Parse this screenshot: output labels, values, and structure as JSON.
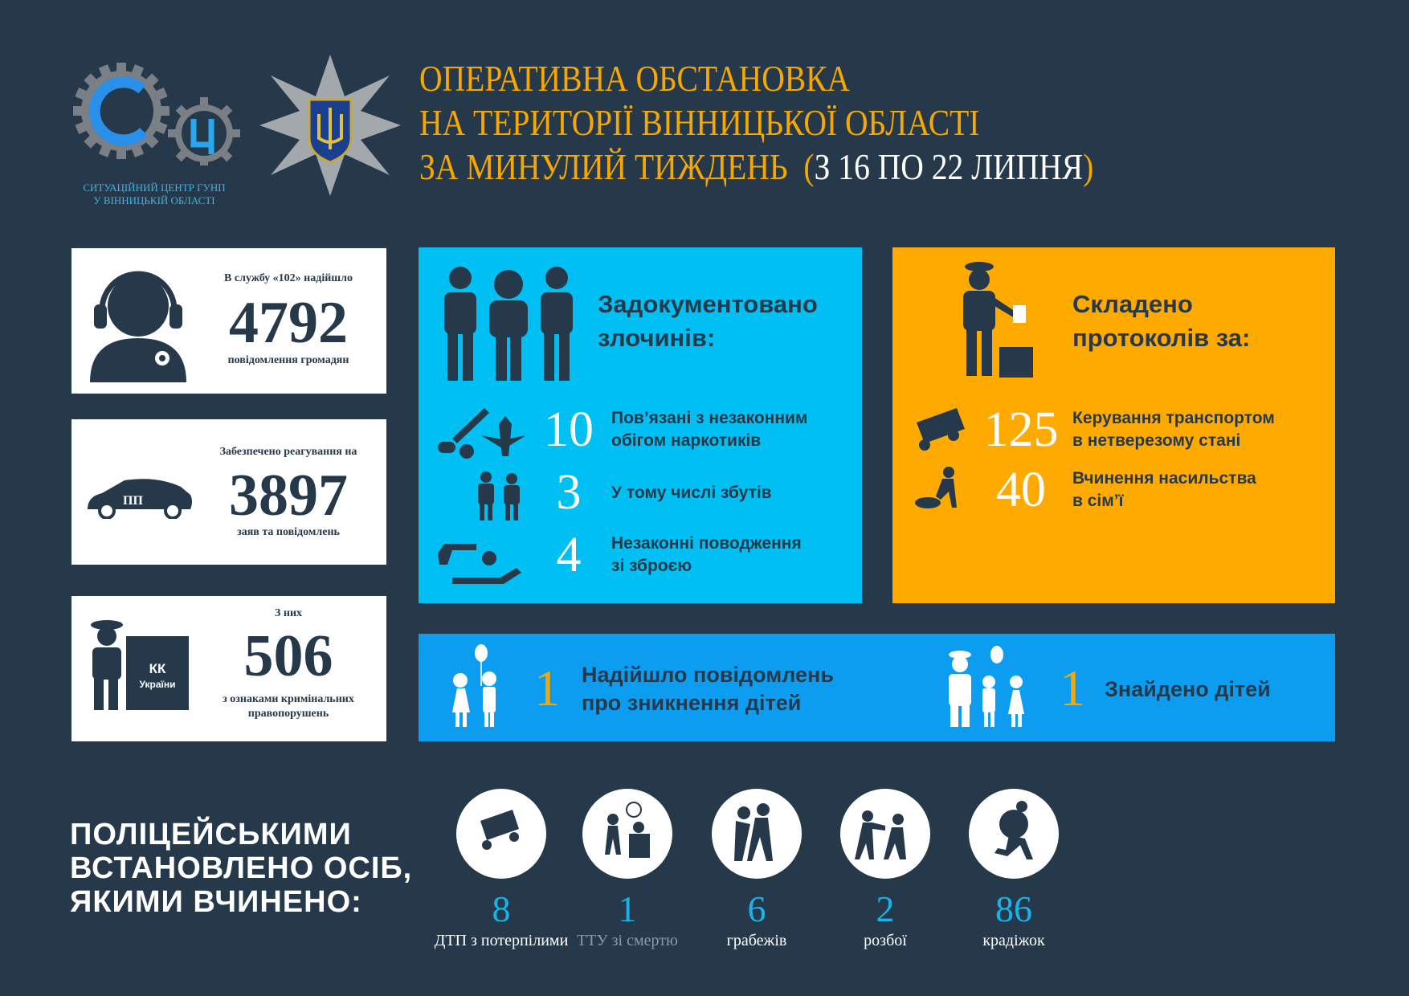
{
  "colors": {
    "background": "#26394a",
    "title": "#f7a800",
    "crimes_box": "#00bff3",
    "protocols_box": "#ffaa00",
    "children_bar": "#0d9df0",
    "stat_numbers": "#19b3ea"
  },
  "logo": {
    "caption_line1": "СИТУАЦІЙНИЙ ЦЕНТР ГУНП",
    "caption_line2": "У ВІННИЦЬКІЙ ОБЛАСТІ",
    "letters": "СЦ"
  },
  "header": {
    "line1": "ОПЕРАТИВНА ОБСТАНОВКА",
    "line2": "НА ТЕРИТОРІЇ ВІННИЦЬКОЇ ОБЛАСТІ",
    "line3": "ЗА МИНУЛИЙ ТИЖДЕНЬ",
    "paren_open": "(",
    "period": "З 16 ПО 22 ЛИПНЯ",
    "paren_close": ")"
  },
  "cards": [
    {
      "label": "В службу «102» надійшло",
      "value": "4792",
      "sub": "повідомлення громадян",
      "icon": "headset-operator-icon"
    },
    {
      "label": "Забезпечено реагування на",
      "value": "3897",
      "sub": "заяв та повідомлень",
      "icon": "police-car-icon"
    },
    {
      "label": "З них",
      "value": "506",
      "sub": "з ознаками кримінальних правопорушень",
      "icon": "police-criminal-code-icon",
      "book_text1": "КК",
      "book_text2": "України"
    }
  ],
  "crimes": {
    "heading1": "Задокументовано",
    "heading2": "злочинів:",
    "rows": [
      {
        "value": "10",
        "text1": "Пов’язані з незаконним",
        "text2": "обігом наркотиків",
        "icon": "drugs-icon"
      },
      {
        "value": "3",
        "text1": "У тому числі збутів",
        "text2": "",
        "icon": "drug-dealing-icon"
      },
      {
        "value": "4",
        "text1": "Незаконні поводження",
        "text2": "зі зброєю",
        "icon": "weapons-icon"
      }
    ]
  },
  "protocols": {
    "heading1": "Складено",
    "heading2": "протоколів за:",
    "rows": [
      {
        "value": "125",
        "text1": "Керування транспортом",
        "text2": "в нетверезому стані",
        "icon": "overturned-car-icon"
      },
      {
        "value": "40",
        "text1": "Вчинення насильства",
        "text2": "в сім’ї",
        "icon": "domestic-violence-icon"
      }
    ]
  },
  "children": [
    {
      "value": "1",
      "text1": "Надійшло повідомлень",
      "text2": "про зникнення дітей",
      "icon": "children-balloon-icon"
    },
    {
      "value": "1",
      "text1": "Знайдено дітей",
      "icon": "police-children-icon"
    }
  ],
  "established": {
    "line1": "ПОЛІЦЕЙСЬКИМИ",
    "line2": "ВСТАНОВЛЕНО ОСІБ,",
    "line3": "ЯКИМИ ВЧИНЕНО:",
    "items": [
      {
        "value": "8",
        "label": "ДТП з потерпілими",
        "icon": "car-crash-icon"
      },
      {
        "value": "1",
        "label": "ТТУ зі смертю",
        "icon": "assault-icon"
      },
      {
        "value": "6",
        "label": "грабежів",
        "icon": "robbery-icon"
      },
      {
        "value": "2",
        "label": "розбої",
        "icon": "armed-robbery-icon"
      },
      {
        "value": "86",
        "label": "крадіжок",
        "icon": "thief-icon"
      }
    ]
  }
}
